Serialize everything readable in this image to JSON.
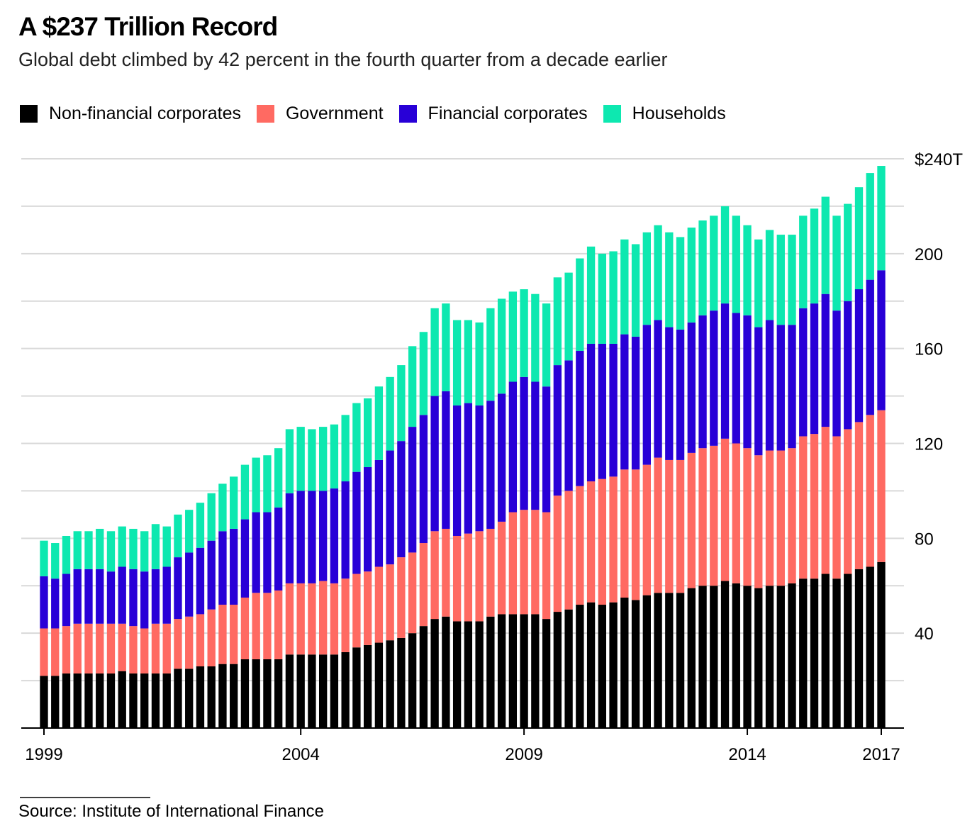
{
  "chart_data": {
    "type": "stacked_bar",
    "title": "A $237 Trillion Record",
    "subtitle": "Global debt climbed by 42 percent in the fourth quarter from a decade earlier",
    "source": "Source: Institute of International Finance",
    "categories": [
      "1999",
      null,
      null,
      null,
      null,
      null,
      null,
      null,
      null,
      null,
      null,
      null,
      null,
      null,
      null,
      null,
      null,
      null,
      null,
      null,
      null,
      null,
      null,
      "2004",
      null,
      null,
      null,
      null,
      null,
      null,
      null,
      null,
      null,
      null,
      null,
      null,
      null,
      null,
      null,
      null,
      null,
      null,
      null,
      "2009",
      null,
      null,
      null,
      null,
      null,
      null,
      null,
      null,
      null,
      null,
      null,
      null,
      null,
      null,
      null,
      null,
      null,
      null,
      null,
      "2014",
      null,
      null,
      null,
      null,
      null,
      null,
      null,
      null,
      null,
      null,
      null,
      "2017"
    ],
    "series": [
      {
        "name": "Non-financial corporates",
        "color": "#000000",
        "values": [
          22,
          22,
          23,
          23,
          23,
          23,
          23,
          24,
          23,
          23,
          23,
          23,
          25,
          25,
          26,
          26,
          27,
          27,
          29,
          29,
          29,
          29,
          31,
          31,
          31,
          31,
          31,
          32,
          34,
          35,
          36,
          37,
          38,
          40,
          43,
          46,
          47,
          45,
          45,
          45,
          47,
          48,
          48,
          48,
          48,
          46,
          49,
          50,
          52,
          53,
          52,
          53,
          55,
          54,
          56,
          57,
          57,
          57,
          59,
          60,
          60,
          62,
          61,
          60,
          59,
          60,
          60,
          61,
          63,
          63,
          65,
          63,
          65,
          67,
          68,
          70
        ]
      },
      {
        "name": "Government",
        "color": "#ff6a62",
        "values": [
          20,
          20,
          20,
          21,
          21,
          21,
          21,
          20,
          20,
          19,
          21,
          21,
          21,
          22,
          22,
          24,
          25,
          25,
          26,
          28,
          28,
          29,
          30,
          30,
          30,
          31,
          30,
          31,
          31,
          31,
          32,
          32,
          34,
          34,
          35,
          37,
          37,
          36,
          37,
          38,
          37,
          39,
          43,
          44,
          44,
          45,
          49,
          50,
          50,
          51,
          53,
          53,
          54,
          55,
          55,
          57,
          56,
          56,
          57,
          58,
          59,
          60,
          59,
          58,
          56,
          57,
          57,
          57,
          60,
          61,
          62,
          60,
          61,
          62,
          64,
          64
        ]
      },
      {
        "name": "Financial corporates",
        "color": "#2800d7",
        "values": [
          22,
          21,
          22,
          23,
          23,
          23,
          22,
          24,
          24,
          24,
          23,
          24,
          26,
          27,
          28,
          29,
          31,
          32,
          33,
          34,
          34,
          35,
          38,
          39,
          39,
          38,
          40,
          41,
          43,
          44,
          45,
          48,
          49,
          53,
          54,
          57,
          58,
          55,
          55,
          53,
          54,
          54,
          55,
          56,
          54,
          53,
          55,
          55,
          57,
          58,
          57,
          56,
          57,
          56,
          59,
          58,
          56,
          55,
          55,
          56,
          57,
          57,
          55,
          56,
          54,
          55,
          53,
          52,
          54,
          55,
          56,
          53,
          54,
          56,
          57,
          59
        ]
      },
      {
        "name": "Households",
        "color": "#0de8b0",
        "values": [
          15,
          15,
          16,
          16,
          16,
          17,
          17,
          17,
          17,
          17,
          19,
          17,
          18,
          18,
          19,
          20,
          20,
          22,
          23,
          23,
          24,
          25,
          27,
          27,
          26,
          27,
          27,
          28,
          29,
          29,
          31,
          31,
          32,
          34,
          35,
          37,
          37,
          36,
          35,
          35,
          39,
          40,
          38,
          37,
          37,
          35,
          37,
          37,
          39,
          41,
          38,
          39,
          40,
          39,
          39,
          40,
          40,
          39,
          40,
          40,
          40,
          41,
          41,
          38,
          37,
          38,
          38,
          38,
          39,
          40,
          41,
          40,
          41,
          43,
          45,
          44
        ]
      }
    ],
    "ylim": [
      0,
      240
    ],
    "yticks": [
      40,
      80,
      120,
      160,
      200,
      {
        "value": 240,
        "label": "$240T"
      }
    ],
    "y_minor_ticks": [
      20,
      60,
      100,
      140,
      180,
      220
    ],
    "grid": true
  }
}
